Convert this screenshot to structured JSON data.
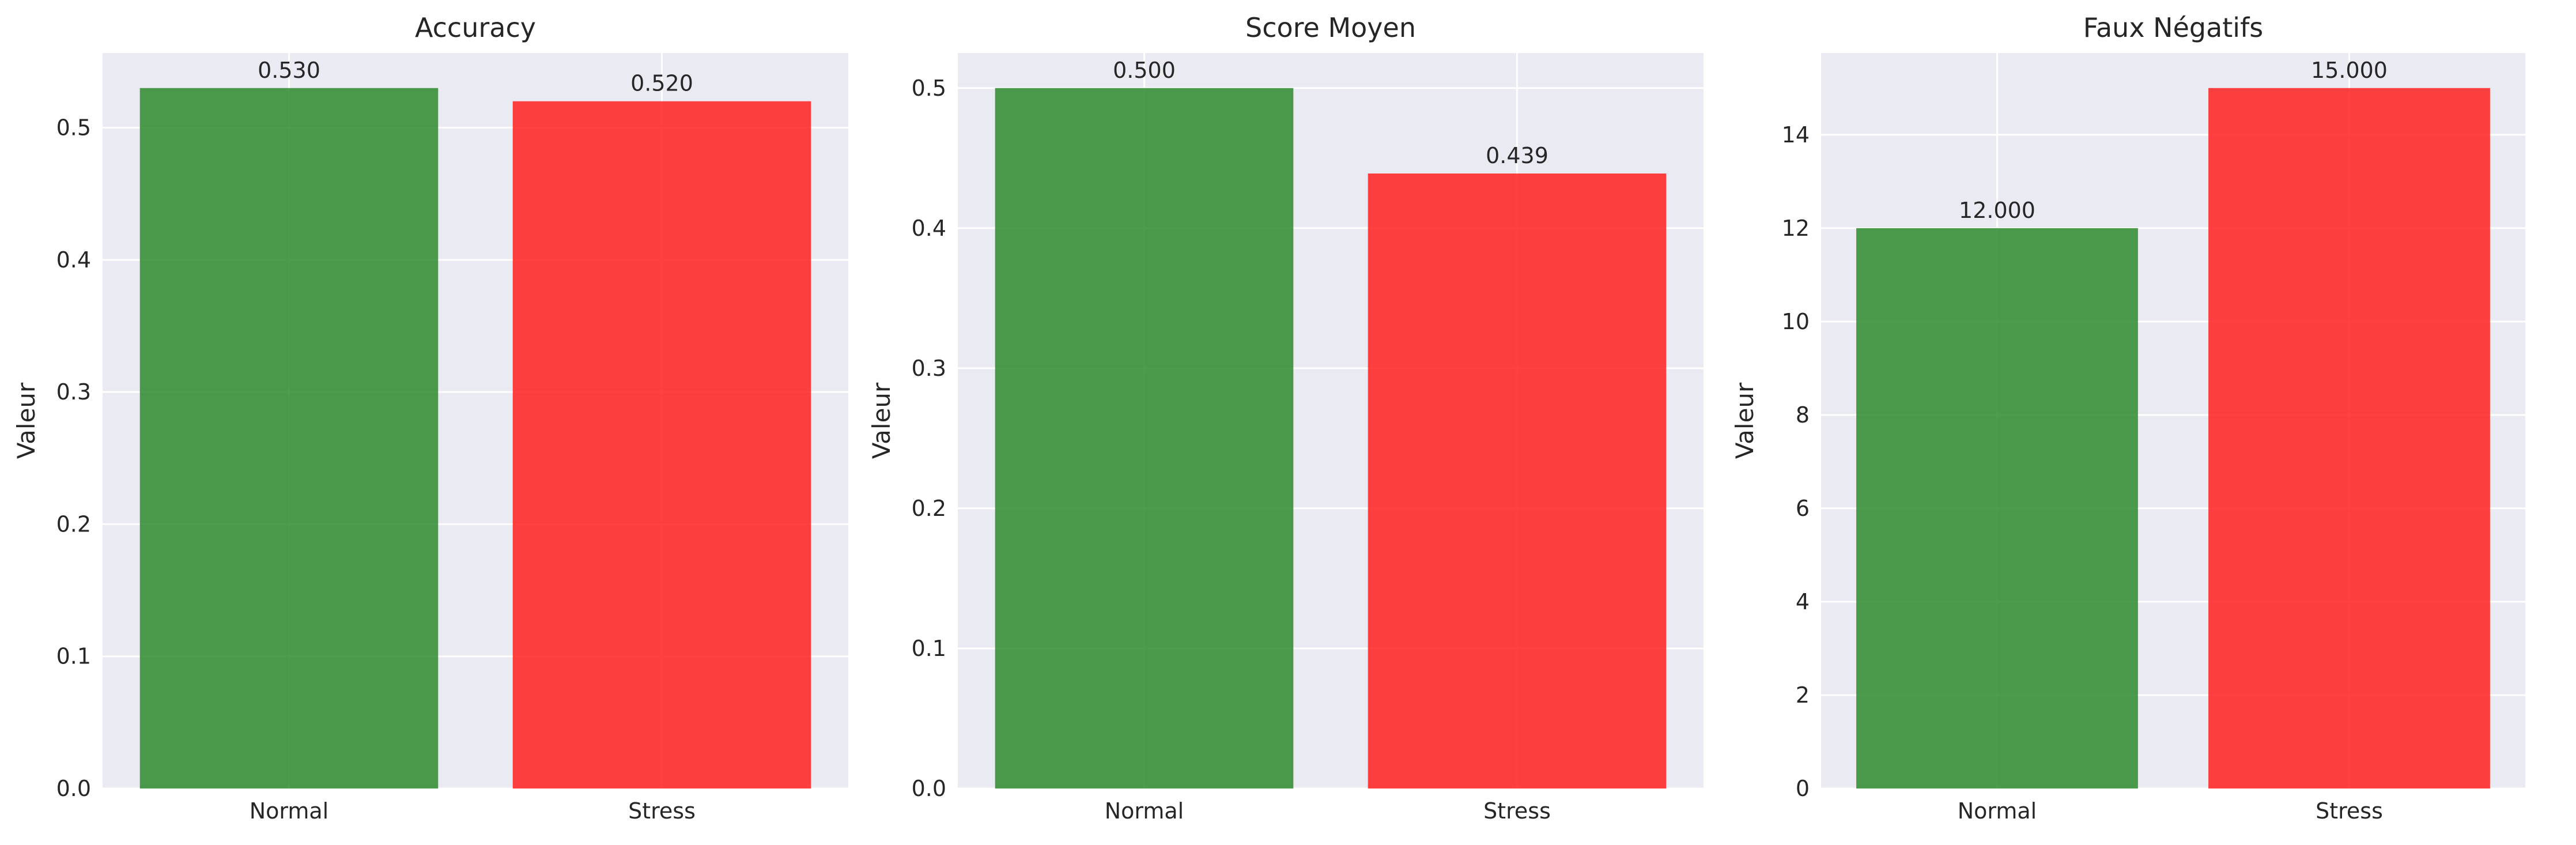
{
  "chart_data": [
    {
      "type": "bar",
      "title": "Accuracy",
      "ylabel": "Valeur",
      "xlabel": "",
      "categories": [
        "Normal",
        "Stress"
      ],
      "values": [
        0.53,
        0.52
      ],
      "value_labels": [
        "0.530",
        "0.520"
      ],
      "ylim": [
        0,
        0.5565
      ],
      "yticks": [
        0.0,
        0.1,
        0.2,
        0.3,
        0.4,
        0.5
      ],
      "ytick_labels": [
        "0.0",
        "0.1",
        "0.2",
        "0.3",
        "0.4",
        "0.5"
      ],
      "bar_colors": [
        "#2e8b2e",
        "#ff2020"
      ],
      "grid": true
    },
    {
      "type": "bar",
      "title": "Score Moyen",
      "ylabel": "Valeur",
      "xlabel": "",
      "categories": [
        "Normal",
        "Stress"
      ],
      "values": [
        0.5,
        0.439
      ],
      "value_labels": [
        "0.500",
        "0.439"
      ],
      "ylim": [
        0,
        0.525
      ],
      "yticks": [
        0.0,
        0.1,
        0.2,
        0.3,
        0.4,
        0.5
      ],
      "ytick_labels": [
        "0.0",
        "0.1",
        "0.2",
        "0.3",
        "0.4",
        "0.5"
      ],
      "bar_colors": [
        "#2e8b2e",
        "#ff2020"
      ],
      "grid": true
    },
    {
      "type": "bar",
      "title": "Faux Négatifs",
      "ylabel": "Valeur",
      "xlabel": "",
      "categories": [
        "Normal",
        "Stress"
      ],
      "values": [
        12,
        15
      ],
      "value_labels": [
        "12.000",
        "15.000"
      ],
      "ylim": [
        0,
        15.75
      ],
      "yticks": [
        0,
        2,
        4,
        6,
        8,
        10,
        12,
        14
      ],
      "ytick_labels": [
        "0",
        "2",
        "4",
        "6",
        "8",
        "10",
        "12",
        "14"
      ],
      "bar_colors": [
        "#2e8b2e",
        "#ff2020"
      ],
      "grid": true
    }
  ],
  "colors": {
    "plot_background": "#eaeaf2",
    "grid": "#ffffff",
    "text": "#262626"
  }
}
